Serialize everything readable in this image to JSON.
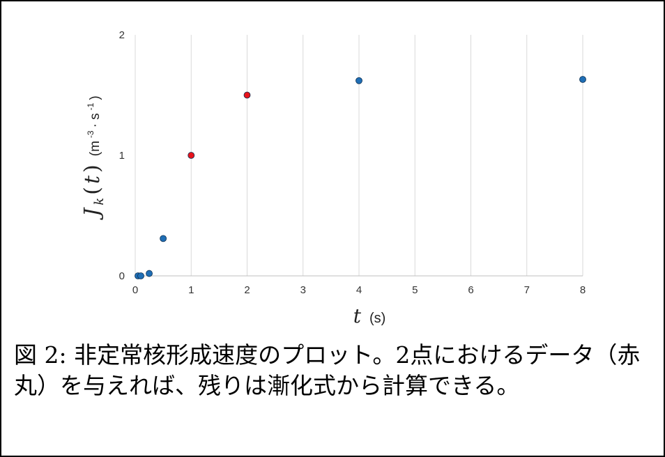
{
  "chart_data": {
    "type": "scatter",
    "x_ticks": [
      "0",
      "1",
      "2",
      "3",
      "4",
      "5",
      "6",
      "7",
      "8"
    ],
    "y_ticks": [
      "0",
      "1",
      "2"
    ],
    "xlim": [
      0,
      8
    ],
    "ylim": [
      0,
      2
    ],
    "xlabel": {
      "var": "t",
      "unit": "(s)"
    },
    "ylabel": {
      "var": "J",
      "sub": "k",
      "arg": "t",
      "unit_pre": "(m",
      "unit_sup1": "-3",
      "unit_mid": " · s",
      "unit_sup2": "-1",
      "unit_post": ")"
    },
    "grid": "vertical",
    "points": [
      {
        "x": 0.05,
        "y": 0.0,
        "color": "#1f6eb5"
      },
      {
        "x": 0.1,
        "y": 0.0,
        "color": "#1f6eb5"
      },
      {
        "x": 0.25,
        "y": 0.02,
        "color": "#1f6eb5"
      },
      {
        "x": 0.5,
        "y": 0.31,
        "color": "#1f6eb5"
      },
      {
        "x": 1,
        "y": 1.0,
        "color": "#e8131b"
      },
      {
        "x": 2,
        "y": 1.5,
        "color": "#e8131b"
      },
      {
        "x": 4,
        "y": 1.62,
        "color": "#1f6eb5"
      },
      {
        "x": 8,
        "y": 1.63,
        "color": "#1f6eb5"
      }
    ]
  },
  "caption": "図 2: 非定常核形成速度のプロット。2点におけるデータ（赤丸）を与えれば、残りは漸化式から計算できる。"
}
